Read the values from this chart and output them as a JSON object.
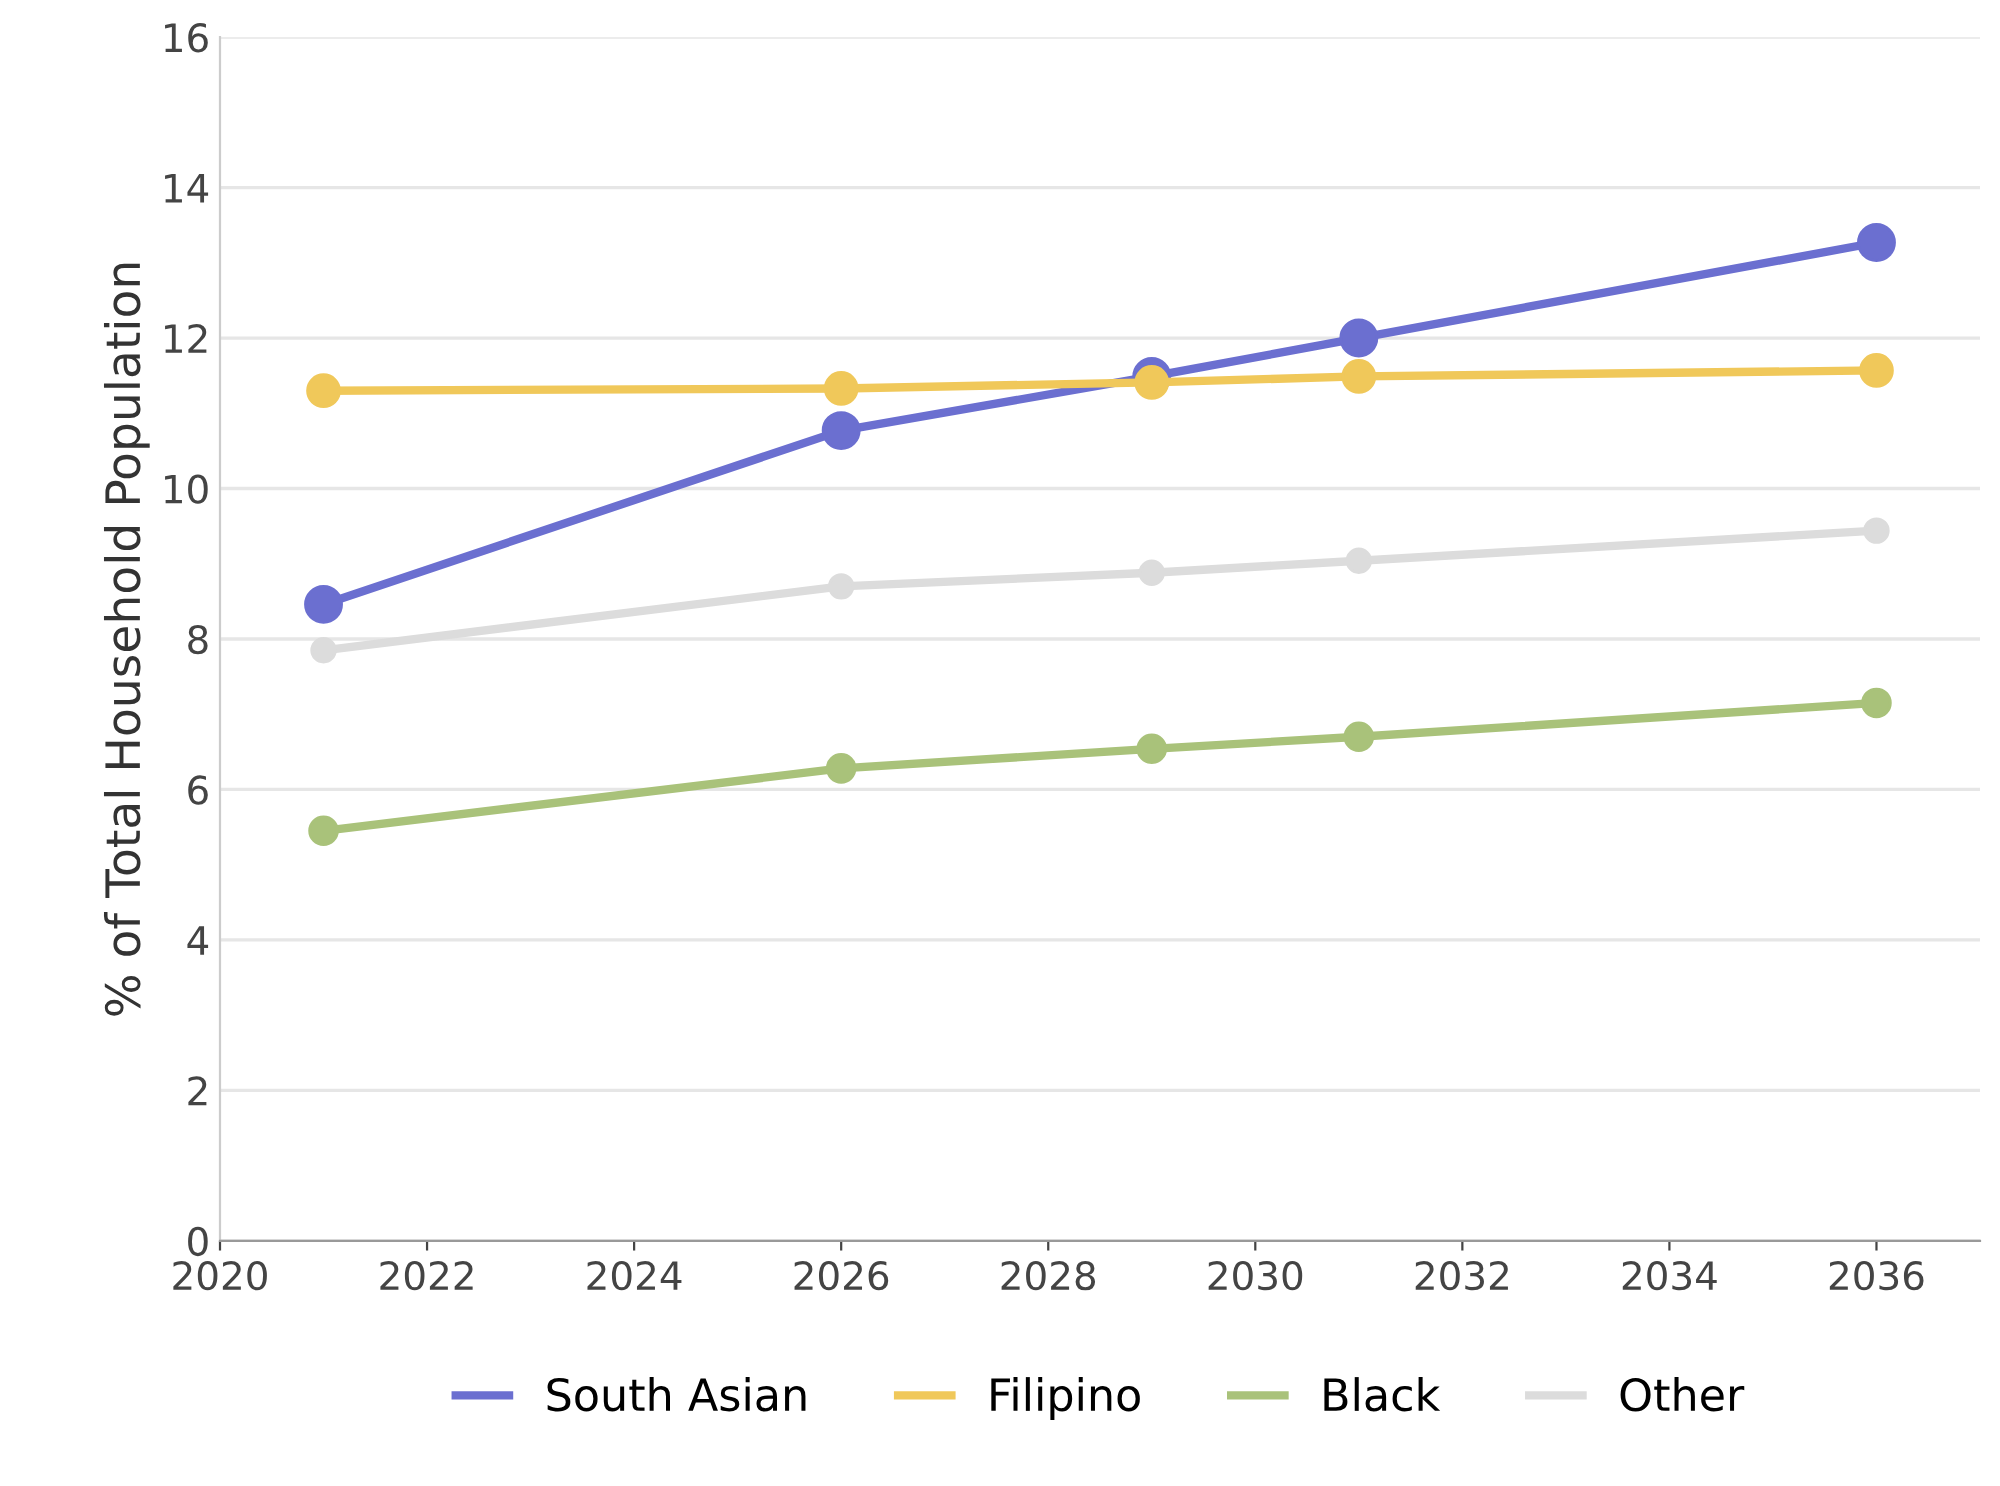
{
  "chart_data": {
    "type": "line",
    "ylabel": "% of Total Household Population",
    "x": [
      2021,
      2026,
      2029,
      2031,
      2036
    ],
    "series": [
      {
        "name": "South Asian",
        "color": "#6b6fd0",
        "values": [
          8.46,
          10.77,
          11.49,
          12.0,
          13.27
        ]
      },
      {
        "name": "Filipino",
        "color": "#f0c85a",
        "values": [
          11.3,
          11.33,
          11.41,
          11.49,
          11.57
        ]
      },
      {
        "name": "Black",
        "color": "#a9c27a",
        "values": [
          5.45,
          6.28,
          6.54,
          6.7,
          7.15
        ]
      },
      {
        "name": "Other",
        "color": "#dcdcdc",
        "values": [
          7.85,
          8.7,
          8.88,
          9.04,
          9.44
        ]
      }
    ],
    "xlim": [
      2020,
      2037
    ],
    "xticks": [
      2020,
      2022,
      2024,
      2026,
      2028,
      2030,
      2032,
      2034,
      2036
    ],
    "ylim": [
      0,
      16
    ],
    "yticks": [
      0,
      2,
      4,
      6,
      8,
      10,
      12,
      14,
      16
    ],
    "grid": "y",
    "legend": "bottom",
    "marker": "circle",
    "line_style": "solid"
  }
}
